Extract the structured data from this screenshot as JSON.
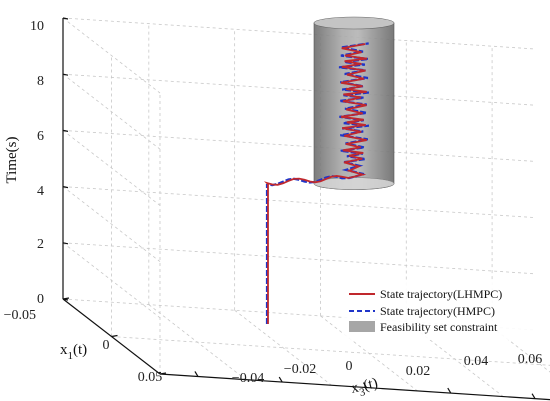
{
  "chart_data": {
    "type": "line",
    "title": "",
    "projection": "3d",
    "axes": {
      "z": {
        "label": "Time(s)",
        "ticks": [
          "0",
          "2",
          "4",
          "6",
          "8",
          "10"
        ],
        "range": [
          0,
          10
        ]
      },
      "x1": {
        "label_main": "x",
        "label_sub": "1",
        "label_tail": "(t)",
        "ticks": [
          "−0.05",
          "0",
          "0.05"
        ],
        "range": [
          -0.05,
          0.05
        ]
      },
      "x3": {
        "label_main": "x",
        "label_sub": "3",
        "label_tail": "(t)",
        "ticks": [
          "−0.04",
          "−0.02",
          "0",
          "0.02",
          "0.04",
          "0.06"
        ],
        "range": [
          -0.05,
          0.06
        ]
      }
    },
    "grid": true,
    "legend_position": "bottom-right",
    "series": [
      {
        "name": "State trajectory(LHMPC)",
        "color": "#c0282d",
        "style": "solid"
      },
      {
        "name": "State trajectory(HMPC)",
        "color": "#1f35c9",
        "style": "dashed"
      }
    ],
    "constraint": {
      "name": "Feasibility set constraint",
      "shape": "cylinder",
      "color": "#8c8c8c",
      "z_range": [
        4,
        10
      ]
    }
  }
}
